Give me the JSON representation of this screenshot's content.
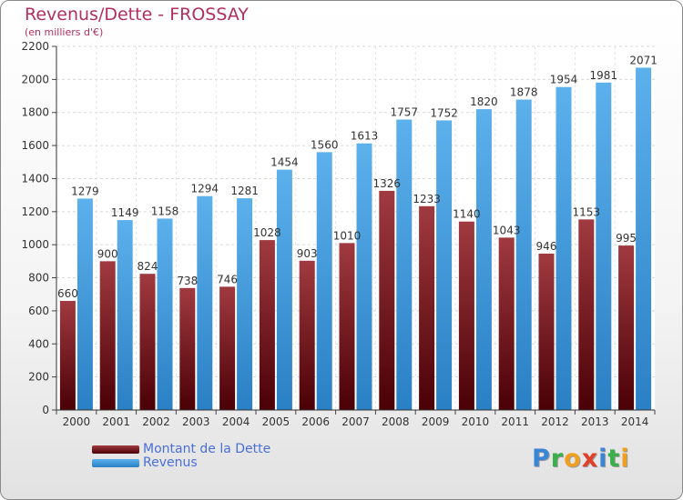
{
  "title": "Revenus/Dette - FROSSAY",
  "subtitle": "(en milliers d'€)",
  "logo": {
    "text": "Proxiti",
    "letters": [
      {
        "ch": "P",
        "color": "#3a86d6"
      },
      {
        "ch": "r",
        "color": "#3ab04a"
      },
      {
        "ch": "o",
        "color": "#f0a020"
      },
      {
        "ch": "x",
        "color": "#e0402a"
      },
      {
        "ch": "i",
        "color": "#3a86d6"
      },
      {
        "ch": "t",
        "color": "#3ab04a"
      },
      {
        "ch": "i",
        "color": "#f0a020"
      }
    ]
  },
  "colors": {
    "dette": "#7a1a1e",
    "revenus": "#4aa0e0",
    "title": "#b0305a",
    "legend_text": "#4a6fd8"
  },
  "chart_data": {
    "type": "bar",
    "categories": [
      "2000",
      "2001",
      "2002",
      "2003",
      "2004",
      "2005",
      "2006",
      "2007",
      "2008",
      "2009",
      "2010",
      "2011",
      "2012",
      "2013",
      "2014"
    ],
    "series": [
      {
        "name": "Montant de la Dette",
        "values": [
          660,
          900,
          824,
          738,
          746,
          1028,
          903,
          1010,
          1326,
          1233,
          1140,
          1043,
          946,
          1153,
          995
        ],
        "labels": [
          "660",
          "900",
          "824",
          "738",
          "746",
          "1028",
          "903",
          "1010",
          "1326",
          "1233",
          "1140",
          "1043",
          "946",
          "1153",
          "995"
        ]
      },
      {
        "name": "Revenus",
        "values": [
          1279,
          1149,
          1158,
          1294,
          1281,
          1454,
          1560,
          1613,
          1757,
          1752,
          1820,
          1878,
          1954,
          1981,
          2071
        ],
        "labels": [
          "1279",
          "1149",
          "1158",
          "1294",
          "1281",
          "1454",
          "1560",
          "1613",
          "1757",
          "1752",
          "1820",
          "1878",
          "1954",
          "1981",
          "2071"
        ]
      }
    ],
    "title": "Revenus/Dette - FROSSAY",
    "ylabel": "(en milliers d'€)",
    "ylim": [
      0,
      2200
    ],
    "yticks": [
      0,
      200,
      400,
      600,
      800,
      1000,
      1200,
      1400,
      1600,
      1800,
      2000,
      2200
    ],
    "grid": true,
    "legend": "bottom-left"
  }
}
